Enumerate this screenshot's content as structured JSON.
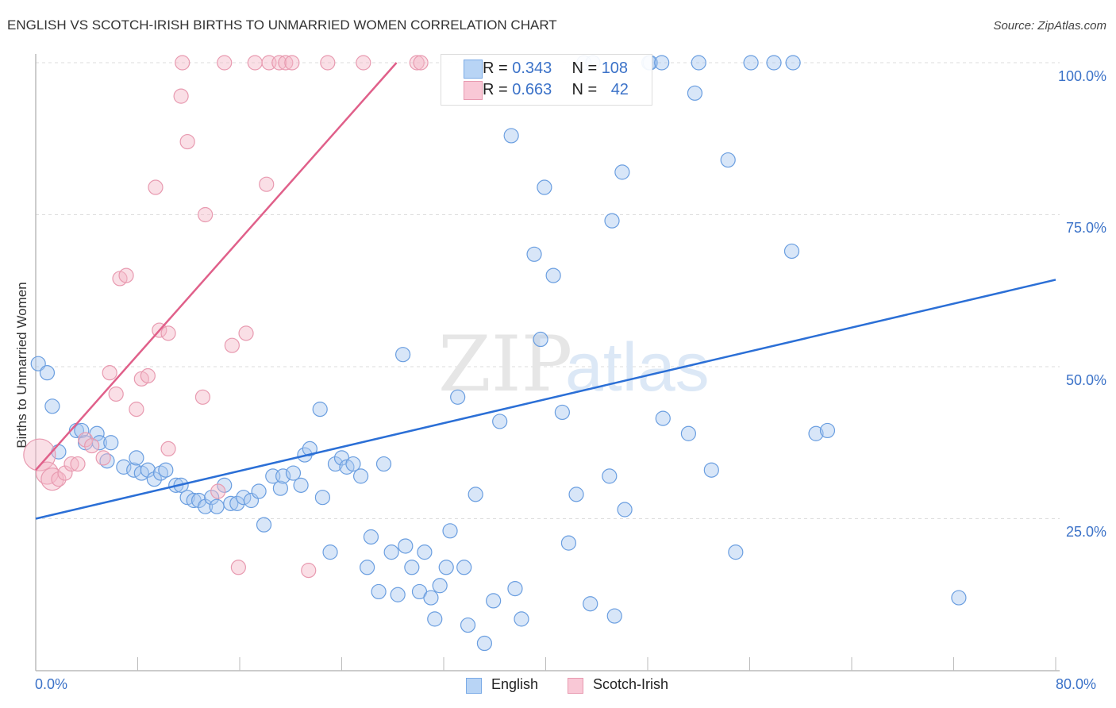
{
  "header": {
    "title": "ENGLISH VS SCOTCH-IRISH BIRTHS TO UNMARRIED WOMEN CORRELATION CHART",
    "source": "Source: ZipAtlas.com"
  },
  "watermark": {
    "zip": "ZIP",
    "atlas": "atlas"
  },
  "stats_box": {
    "rows": [
      {
        "r_label": "R = ",
        "r_value": "0.343",
        "n_label": "N = ",
        "n_value": "108",
        "color": "#a8c8f0"
      },
      {
        "r_label": "R = ",
        "r_value": "0.663",
        "n_label": "N = ",
        "n_value": "42",
        "color": "#f5b8c8"
      }
    ]
  },
  "legend": {
    "items": [
      {
        "label": "English",
        "color": "#b8d4f5",
        "border": "#7aaae6"
      },
      {
        "label": "Scotch-Irish",
        "color": "#f9c8d6",
        "border": "#e89ab0"
      }
    ]
  },
  "axes": {
    "ylabel": "Births to Unmarried Women",
    "yticks": [
      "100.0%",
      "75.0%",
      "50.0%",
      "25.0%"
    ],
    "xticks": [
      "0.0%",
      "80.0%"
    ]
  },
  "chart_data": {
    "type": "scatter",
    "title": "ENGLISH VS SCOTCH-IRISH BIRTHS TO UNMARRIED WOMEN CORRELATION CHART",
    "xlabel": "",
    "ylabel": "Births to Unmarried Women",
    "xlim": [
      0,
      80
    ],
    "ylim": [
      0,
      100
    ],
    "grid": "horizontal dashed at 25/50/75/100",
    "legend_position": "bottom center",
    "series": [
      {
        "name": "English",
        "color": "#6a9ee0",
        "R": 0.343,
        "N": 108,
        "trendline": {
          "x": [
            0,
            80
          ],
          "y": [
            25.0,
            64.3
          ]
        },
        "points": [
          [
            0.2,
            50.5
          ],
          [
            0.9,
            49.0
          ],
          [
            1.3,
            43.5
          ],
          [
            1.8,
            36.0
          ],
          [
            3.2,
            39.5
          ],
          [
            3.6,
            39.5
          ],
          [
            3.9,
            37.5
          ],
          [
            4.8,
            39.0
          ],
          [
            5.0,
            37.5
          ],
          [
            5.9,
            37.5
          ],
          [
            5.6,
            34.5
          ],
          [
            6.9,
            33.5
          ],
          [
            7.7,
            33.0
          ],
          [
            7.9,
            35.0
          ],
          [
            8.3,
            32.5
          ],
          [
            8.8,
            33.0
          ],
          [
            9.3,
            31.5
          ],
          [
            9.8,
            32.5
          ],
          [
            10.2,
            33.0
          ],
          [
            11.0,
            30.5
          ],
          [
            11.4,
            30.5
          ],
          [
            11.9,
            28.5
          ],
          [
            12.4,
            28.0
          ],
          [
            12.8,
            28.0
          ],
          [
            13.3,
            27.0
          ],
          [
            13.8,
            28.5
          ],
          [
            14.2,
            27.0
          ],
          [
            14.8,
            30.5
          ],
          [
            15.3,
            27.5
          ],
          [
            15.8,
            27.5
          ],
          [
            16.3,
            28.5
          ],
          [
            16.9,
            28.0
          ],
          [
            17.5,
            29.5
          ],
          [
            17.9,
            24.0
          ],
          [
            18.6,
            32.0
          ],
          [
            19.2,
            30.0
          ],
          [
            19.4,
            32.0
          ],
          [
            20.2,
            32.5
          ],
          [
            20.8,
            30.5
          ],
          [
            21.1,
            35.5
          ],
          [
            21.5,
            36.5
          ],
          [
            22.3,
            43.0
          ],
          [
            22.5,
            28.5
          ],
          [
            23.1,
            19.5
          ],
          [
            23.5,
            34.0
          ],
          [
            24.0,
            35.0
          ],
          [
            24.4,
            33.5
          ],
          [
            24.9,
            34.0
          ],
          [
            25.5,
            32.0
          ],
          [
            26.0,
            17.0
          ],
          [
            26.3,
            22.0
          ],
          [
            26.9,
            13.0
          ],
          [
            27.3,
            34.0
          ],
          [
            27.9,
            19.5
          ],
          [
            28.4,
            12.5
          ],
          [
            28.8,
            52.0
          ],
          [
            29.0,
            20.5
          ],
          [
            29.5,
            17.0
          ],
          [
            30.1,
            13.0
          ],
          [
            30.5,
            19.5
          ],
          [
            31.0,
            12.0
          ],
          [
            31.3,
            8.5
          ],
          [
            31.7,
            14.0
          ],
          [
            32.2,
            17.0
          ],
          [
            32.5,
            23.0
          ],
          [
            33.1,
            45.0
          ],
          [
            33.6,
            17.0
          ],
          [
            33.9,
            7.5
          ],
          [
            34.5,
            29.0
          ],
          [
            35.2,
            4.5
          ],
          [
            35.9,
            11.5
          ],
          [
            36.4,
            41.0
          ],
          [
            37.3,
            88.0
          ],
          [
            37.6,
            13.5
          ],
          [
            38.1,
            8.5
          ],
          [
            39.1,
            68.5
          ],
          [
            39.6,
            54.5
          ],
          [
            39.9,
            79.5
          ],
          [
            40.6,
            65.0
          ],
          [
            41.3,
            42.5
          ],
          [
            41.8,
            21.0
          ],
          [
            42.4,
            29.0
          ],
          [
            43.0,
            100
          ],
          [
            43.7,
            100
          ],
          [
            43.5,
            11.0
          ],
          [
            45.0,
            32.0
          ],
          [
            45.2,
            74.0
          ],
          [
            45.4,
            9.0
          ],
          [
            46.0,
            82.0
          ],
          [
            46.2,
            26.5
          ],
          [
            48.1,
            100
          ],
          [
            48.2,
            100
          ],
          [
            49.1,
            100
          ],
          [
            49.2,
            41.5
          ],
          [
            51.2,
            39.0
          ],
          [
            51.7,
            95.0
          ],
          [
            52.0,
            100
          ],
          [
            53.0,
            33.0
          ],
          [
            54.3,
            84.0
          ],
          [
            54.9,
            19.5
          ],
          [
            56.1,
            100
          ],
          [
            57.9,
            100
          ],
          [
            59.4,
            100
          ],
          [
            59.3,
            69.0
          ],
          [
            61.2,
            39.0
          ],
          [
            62.1,
            39.5
          ],
          [
            72.4,
            12.0
          ]
        ]
      },
      {
        "name": "Scotch-Irish",
        "color": "#e8809e",
        "R": 0.663,
        "N": 42,
        "trendline": {
          "x": [
            0,
            28.3
          ],
          "y": [
            33.0,
            100
          ]
        },
        "points": [
          [
            0.3,
            35.5
          ],
          [
            0.9,
            32.5
          ],
          [
            1.3,
            31.5
          ],
          [
            1.8,
            31.5
          ],
          [
            2.3,
            32.5
          ],
          [
            2.8,
            34.0
          ],
          [
            3.3,
            34.0
          ],
          [
            3.9,
            38.0
          ],
          [
            4.4,
            37.0
          ],
          [
            5.3,
            35.0
          ],
          [
            5.8,
            49.0
          ],
          [
            6.3,
            45.5
          ],
          [
            6.6,
            64.5
          ],
          [
            7.1,
            65.0
          ],
          [
            7.9,
            43.0
          ],
          [
            8.3,
            48.0
          ],
          [
            8.8,
            48.5
          ],
          [
            9.4,
            79.5
          ],
          [
            9.7,
            56.0
          ],
          [
            10.4,
            55.5
          ],
          [
            10.4,
            36.5
          ],
          [
            11.5,
            100
          ],
          [
            11.4,
            94.5
          ],
          [
            11.9,
            87.0
          ],
          [
            13.1,
            45.0
          ],
          [
            13.3,
            75.0
          ],
          [
            14.3,
            29.5
          ],
          [
            14.8,
            100
          ],
          [
            15.4,
            53.5
          ],
          [
            15.9,
            17.0
          ],
          [
            16.5,
            55.5
          ],
          [
            17.2,
            100
          ],
          [
            18.1,
            80.0
          ],
          [
            18.3,
            100
          ],
          [
            19.1,
            100
          ],
          [
            19.6,
            100
          ],
          [
            20.1,
            100
          ],
          [
            21.4,
            16.5
          ],
          [
            22.9,
            100
          ],
          [
            25.7,
            100
          ],
          [
            29.9,
            100
          ],
          [
            30.2,
            100
          ]
        ]
      }
    ]
  }
}
